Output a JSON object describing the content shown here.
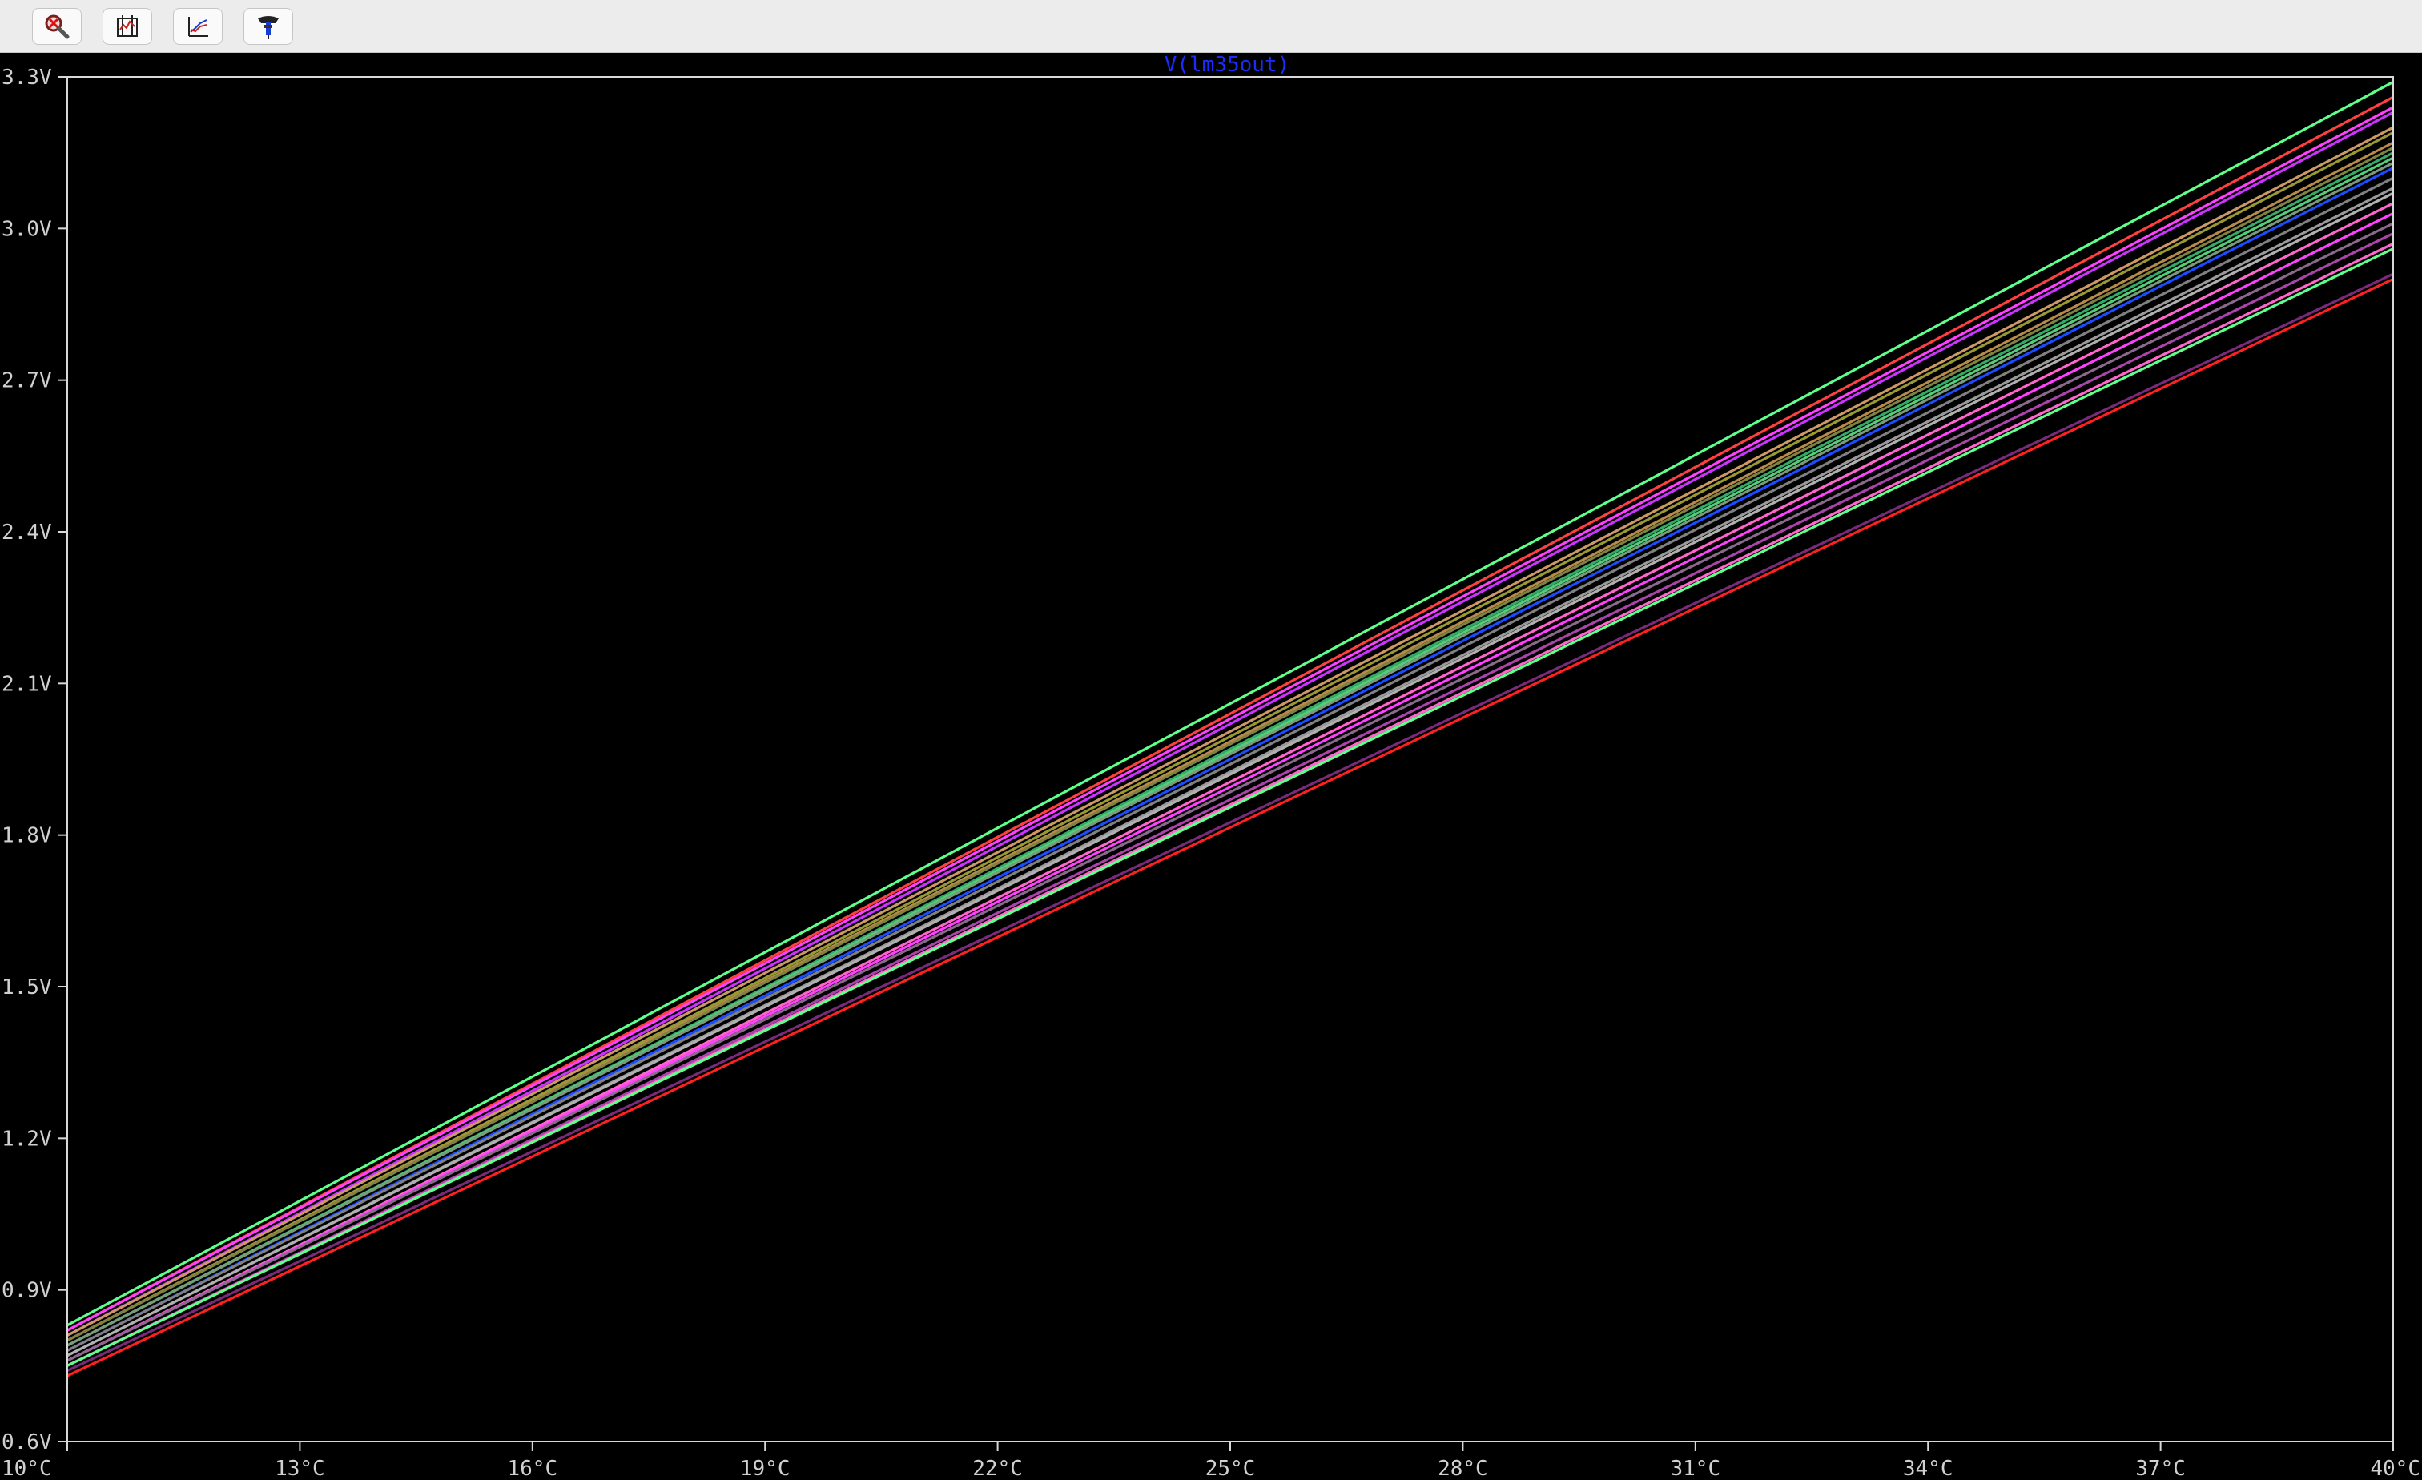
{
  "toolbar": {
    "buttons": [
      {
        "name": "zoom-cancel-button",
        "icon": "zoom-cancel-icon",
        "title": "Cancel zoom"
      },
      {
        "name": "autorange-button",
        "icon": "autorange-icon",
        "title": "Autorange"
      },
      {
        "name": "cursor-button",
        "icon": "waveform-cursor-icon",
        "title": "Cursor"
      },
      {
        "name": "probe-button",
        "icon": "probe-icon",
        "title": "Probe"
      }
    ]
  },
  "colors": {
    "background": "#000000",
    "axis": "#d8d8d8",
    "trace_title": "#1a2bff"
  },
  "chart_data": {
    "type": "line",
    "title": "V(lm35out)",
    "xlabel": "",
    "ylabel": "",
    "xlim": [
      10,
      40
    ],
    "ylim": [
      0.6,
      3.3
    ],
    "xticks": [
      "10°C",
      "13°C",
      "16°C",
      "19°C",
      "22°C",
      "25°C",
      "28°C",
      "31°C",
      "34°C",
      "37°C",
      "40°C"
    ],
    "yticks": [
      "0.6V",
      "0.9V",
      "1.2V",
      "1.5V",
      "1.8V",
      "2.1V",
      "2.4V",
      "2.7V",
      "3.0V",
      "3.3V"
    ],
    "grid": false,
    "legend": "none",
    "x": [
      10,
      40
    ],
    "series": [
      {
        "color": "#5eff8a",
        "values": [
          0.83,
          3.29
        ]
      },
      {
        "color": "#ff4040",
        "values": [
          0.82,
          3.26
        ]
      },
      {
        "color": "#ff40ff",
        "values": [
          0.82,
          3.24
        ]
      },
      {
        "color": "#cc33ff",
        "values": [
          0.81,
          3.23
        ]
      },
      {
        "color": "#cc9966",
        "values": [
          0.81,
          3.2
        ]
      },
      {
        "color": "#999933",
        "values": [
          0.8,
          3.19
        ]
      },
      {
        "color": "#b58a4a",
        "values": [
          0.8,
          3.17
        ]
      },
      {
        "color": "#808040",
        "values": [
          0.8,
          3.16
        ]
      },
      {
        "color": "#33aa66",
        "values": [
          0.79,
          3.15
        ]
      },
      {
        "color": "#55cc77",
        "values": [
          0.79,
          3.14
        ]
      },
      {
        "color": "#1a4dff",
        "values": [
          0.78,
          3.12
        ]
      },
      {
        "color": "#7a9a7a",
        "values": [
          0.79,
          3.13
        ]
      },
      {
        "color": "#808080",
        "values": [
          0.78,
          3.1
        ]
      },
      {
        "color": "#999999",
        "values": [
          0.77,
          3.08
        ]
      },
      {
        "color": "#b0b0b0",
        "values": [
          0.77,
          3.07
        ]
      },
      {
        "color": "#ff66cc",
        "values": [
          0.76,
          3.05
        ]
      },
      {
        "color": "#ff40ff",
        "values": [
          0.76,
          3.03
        ]
      },
      {
        "color": "#8a6a8a",
        "values": [
          0.76,
          3.01
        ]
      },
      {
        "color": "#aa44aa",
        "values": [
          0.75,
          2.99
        ]
      },
      {
        "color": "#ff66cc",
        "values": [
          0.75,
          2.97
        ]
      },
      {
        "color": "#5eff8a",
        "values": [
          0.75,
          2.96
        ]
      },
      {
        "color": "#7a2a7a",
        "values": [
          0.74,
          2.91
        ]
      },
      {
        "color": "#ff2020",
        "values": [
          0.73,
          2.9
        ]
      }
    ]
  }
}
